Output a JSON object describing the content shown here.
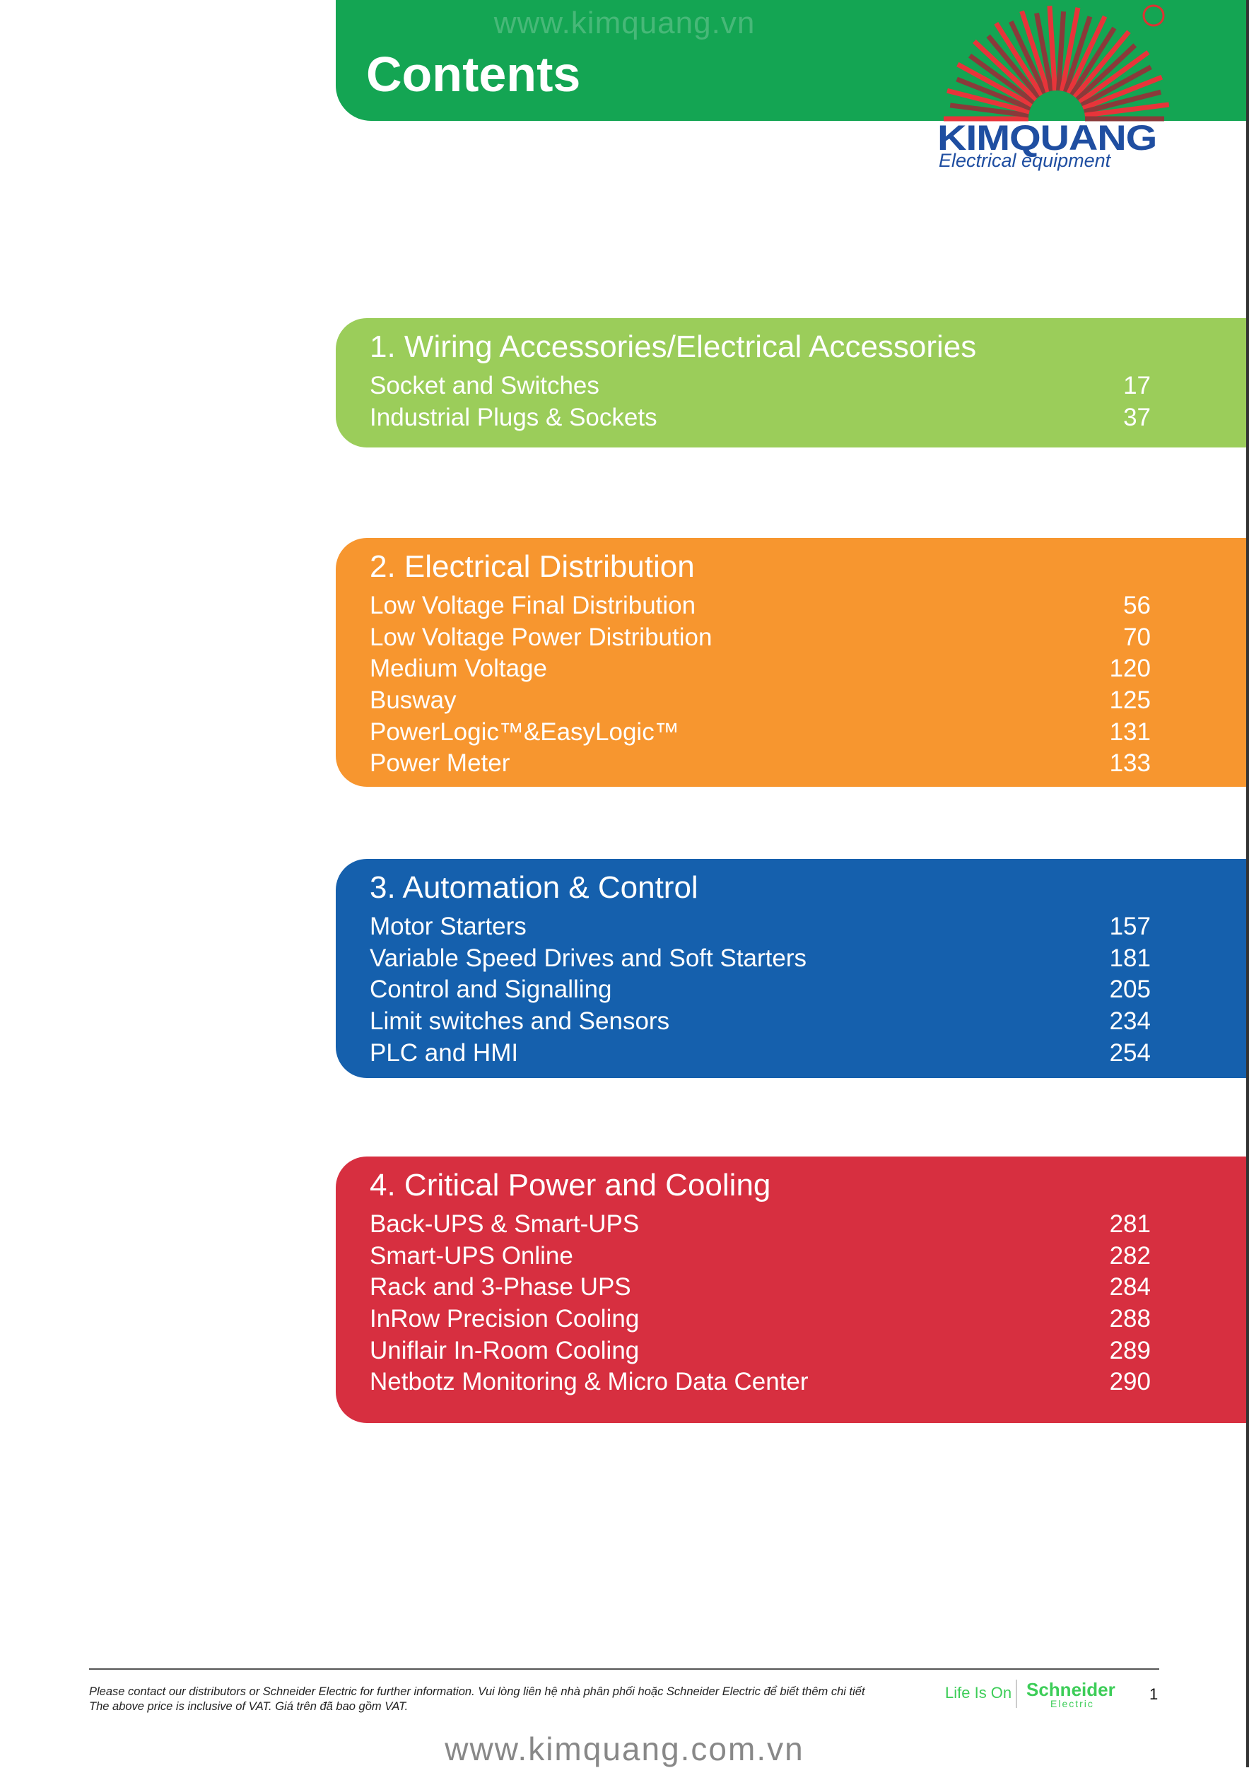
{
  "header": {
    "title": "Contents",
    "watermark": "www.kimquang.vn"
  },
  "logo": {
    "brand": "KIMQUANG",
    "tagline": "Electrical equipment"
  },
  "sections": [
    {
      "title": "1. Wiring Accessories/Electrical Accessories",
      "items": [
        {
          "name": "Socket and Switches",
          "page": 17
        },
        {
          "name": "Industrial Plugs & Sockets",
          "page": 37
        }
      ]
    },
    {
      "title": "2. Electrical Distribution",
      "items": [
        {
          "name": "Low Voltage Final Distribution",
          "page": 56
        },
        {
          "name": "Low Voltage Power Distribution",
          "page": 70
        },
        {
          "name": "Medium Voltage",
          "page": 120
        },
        {
          "name": "Busway",
          "page": 125
        },
        {
          "name": "PowerLogic™&EasyLogic™",
          "page": 131
        },
        {
          "name": "Power Meter",
          "page": 133
        }
      ]
    },
    {
      "title": "3. Automation & Control",
      "items": [
        {
          "name": "Motor Starters",
          "page": 157
        },
        {
          "name": "Variable Speed Drives and Soft Starters",
          "page": 181
        },
        {
          "name": "Control and Signalling",
          "page": 205
        },
        {
          "name": "Limit switches and Sensors",
          "page": 234
        },
        {
          "name": "PLC and HMI",
          "page": 254
        }
      ]
    },
    {
      "title": "4. Critical Power and Cooling",
      "items": [
        {
          "name": "Back-UPS & Smart-UPS",
          "page": 281
        },
        {
          "name": "Smart-UPS Online",
          "page": 282
        },
        {
          "name": "Rack and 3-Phase UPS",
          "page": 284
        },
        {
          "name": "InRow Precision Cooling",
          "page": 288
        },
        {
          "name": "Uniflair In-Room Cooling",
          "page": 289
        },
        {
          "name": "Netbotz Monitoring & Micro Data Center",
          "page": 290
        }
      ]
    }
  ],
  "footer": {
    "line1": "Please contact our distributors or Schneider Electric for further information. Vui lòng liên hệ nhà phân phối hoặc Schneider Electric để biết thêm chi tiết",
    "line2": "The above price is inclusive of VAT. Giá trên đã bao gồm VAT.",
    "slogan": "Life Is On",
    "brand": "Schneider",
    "brand_sub": "Electric",
    "page_number": "1",
    "watermark": "www.kimquang.com.vn"
  }
}
